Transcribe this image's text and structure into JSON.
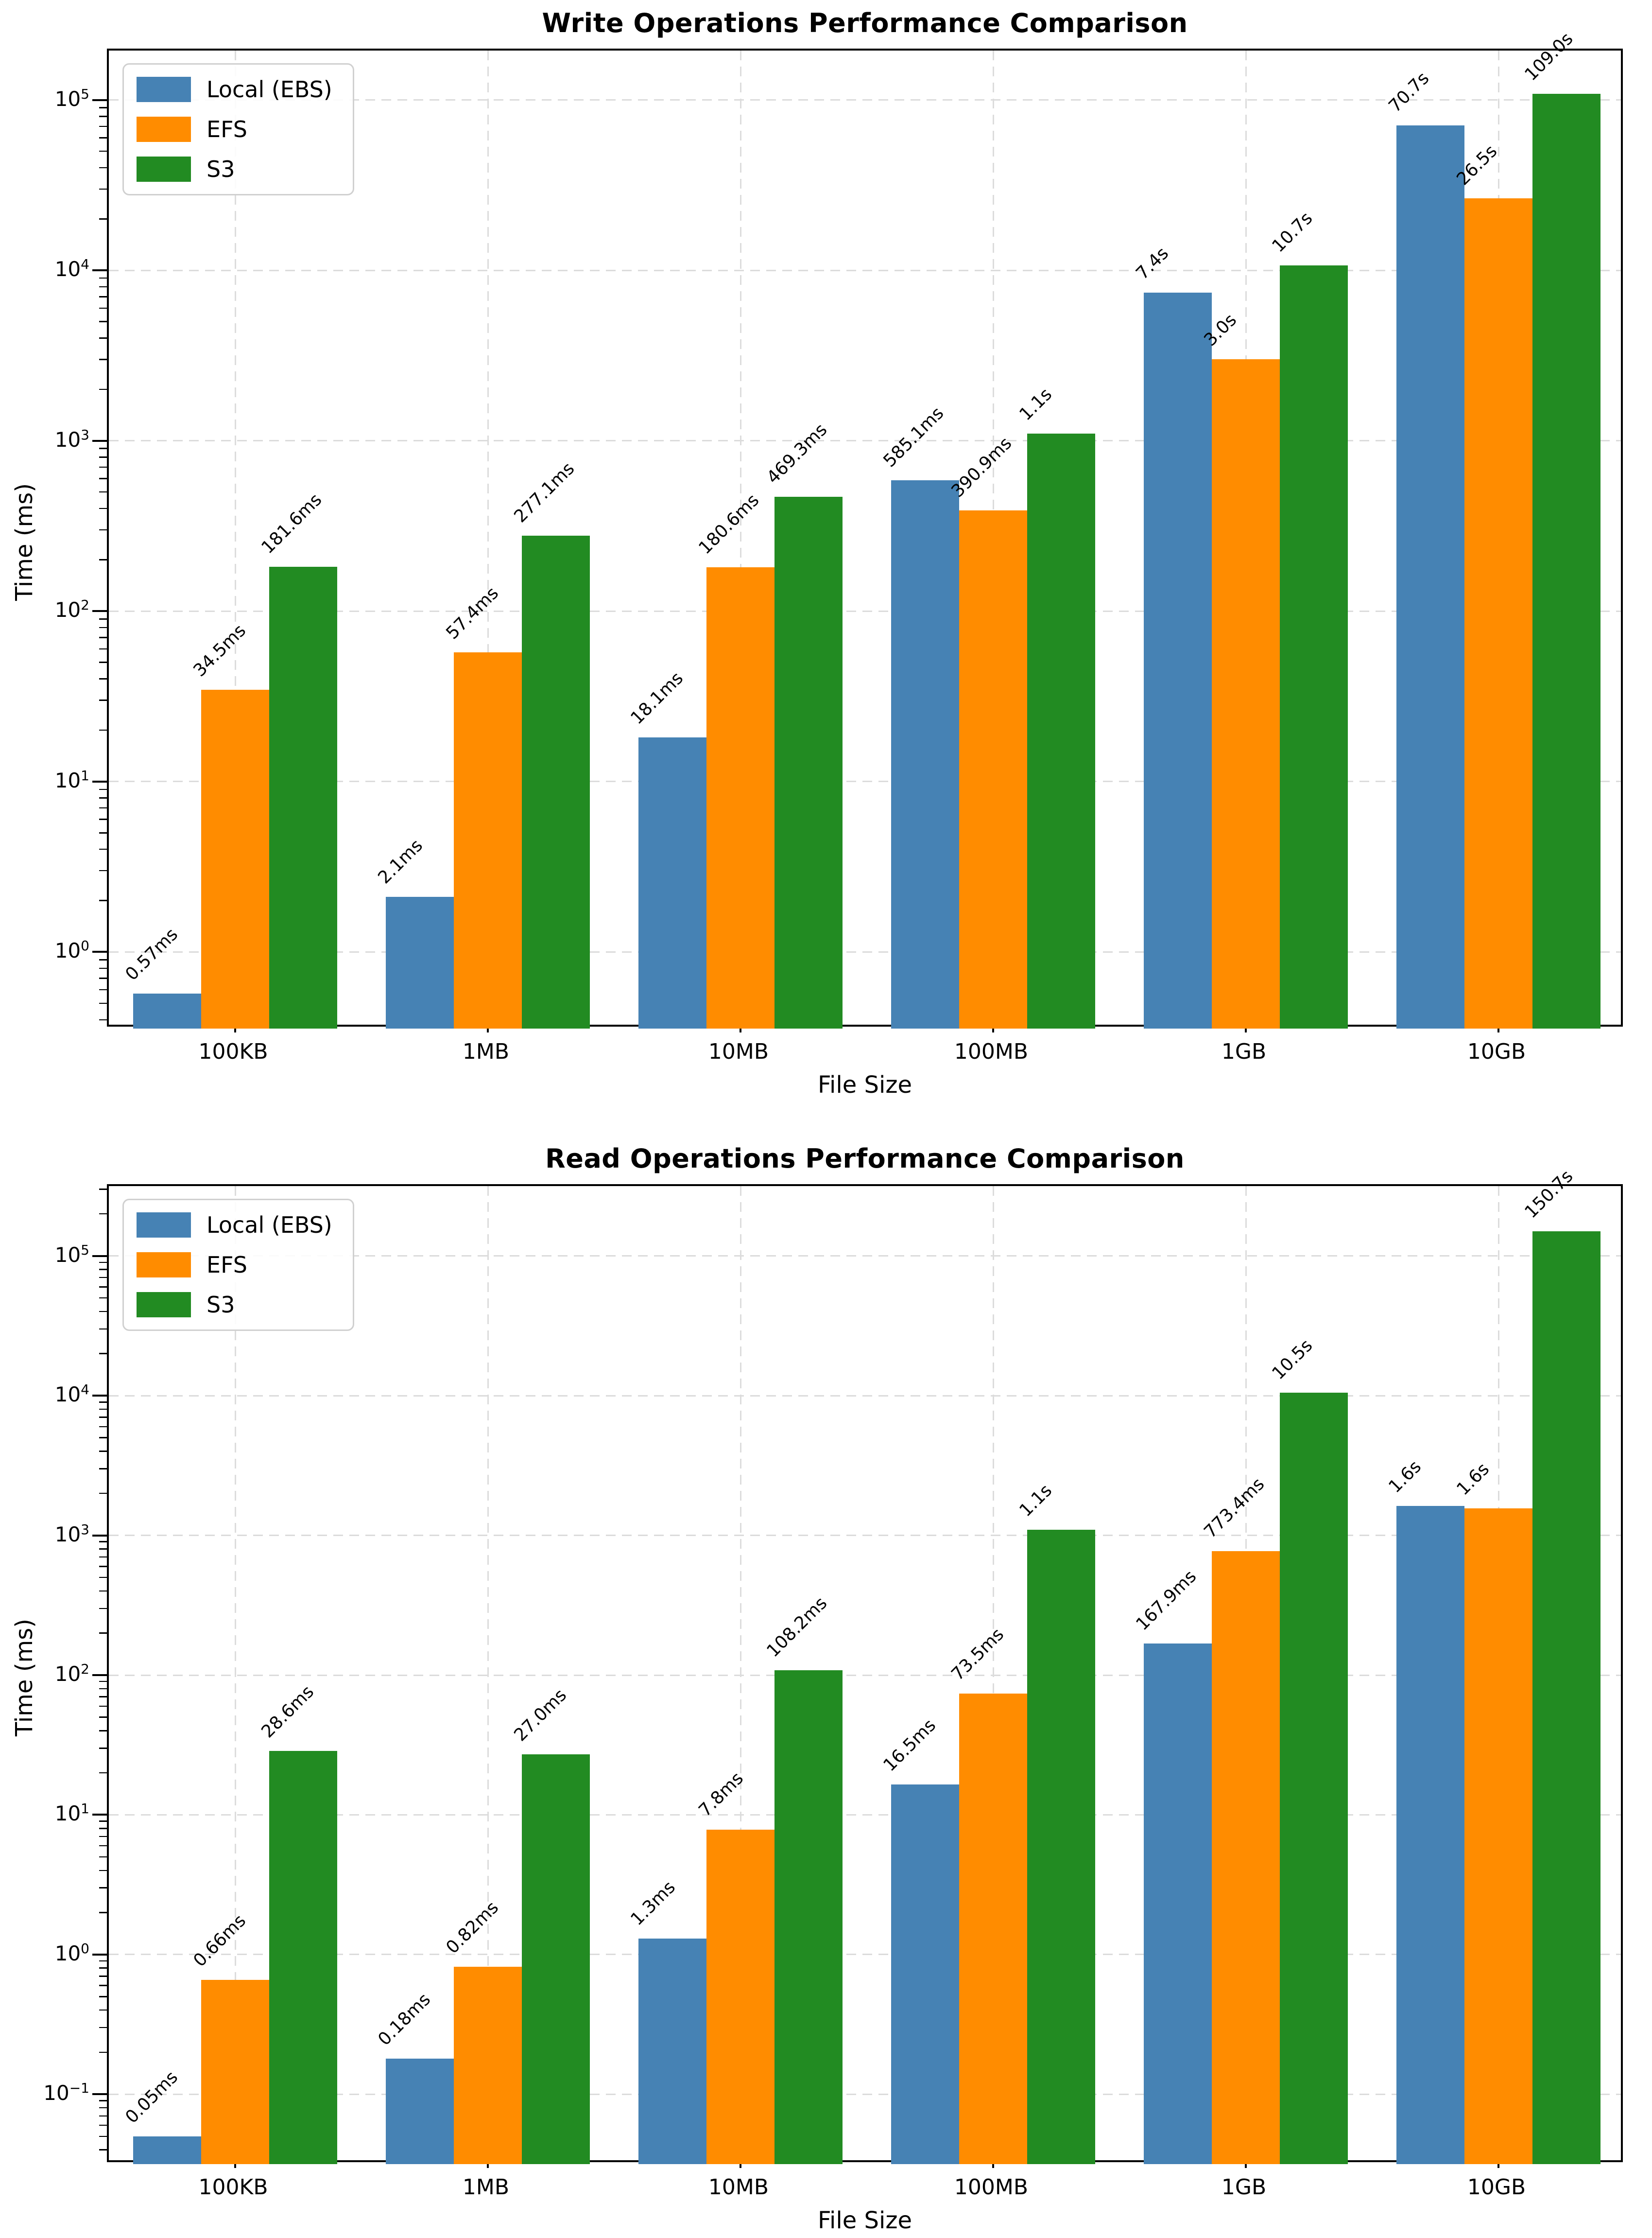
{
  "figure": {
    "background": "#ffffff",
    "grid_color": "#dcdcdc",
    "spine_color": "#000000"
  },
  "chart_data": [
    {
      "type": "bar",
      "title": "Write Operations Performance Comparison",
      "xlabel": "File Size",
      "ylabel": "Time (ms)",
      "yscale": "log",
      "grid": true,
      "legend_position": "upper left",
      "categories": [
        "100KB",
        "1MB",
        "10MB",
        "100MB",
        "1GB",
        "10GB"
      ],
      "ytick_exponents": [
        0,
        1,
        2,
        3,
        4,
        5
      ],
      "ylim_log10": [
        -0.45,
        5.29
      ],
      "series": [
        {
          "name": "Local (EBS)",
          "color": "#4682B4",
          "values_ms": [
            0.57,
            2.1,
            18.1,
            585.1,
            7400,
            70700
          ],
          "labels": [
            "0.57ms",
            "2.1ms",
            "18.1ms",
            "585.1ms",
            "7.4s",
            "70.7s"
          ]
        },
        {
          "name": "EFS",
          "color": "#FF8C00",
          "values_ms": [
            34.5,
            57.4,
            180.6,
            390.9,
            3000,
            26500
          ],
          "labels": [
            "34.5ms",
            "57.4ms",
            "180.6ms",
            "390.9ms",
            "3.0s",
            "26.5s"
          ]
        },
        {
          "name": "S3",
          "color": "#228B22",
          "values_ms": [
            181.6,
            277.1,
            469.3,
            1100,
            10700,
            109000
          ],
          "labels": [
            "181.6ms",
            "277.1ms",
            "469.3ms",
            "1.1s",
            "10.7s",
            "109.0s"
          ]
        }
      ]
    },
    {
      "type": "bar",
      "title": "Read Operations Performance Comparison",
      "xlabel": "File Size",
      "ylabel": "Time (ms)",
      "yscale": "log",
      "grid": true,
      "legend_position": "upper left",
      "categories": [
        "100KB",
        "1MB",
        "10MB",
        "100MB",
        "1GB",
        "10GB"
      ],
      "ytick_exponents": [
        -1,
        0,
        1,
        2,
        3,
        4,
        5
      ],
      "ylim_log10": [
        -1.5,
        5.5
      ],
      "series": [
        {
          "name": "Local (EBS)",
          "color": "#4682B4",
          "values_ms": [
            0.05,
            0.18,
            1.3,
            16.5,
            167.9,
            1620
          ],
          "labels": [
            "0.05ms",
            "0.18ms",
            "1.3ms",
            "16.5ms",
            "167.9ms",
            "1.6s"
          ]
        },
        {
          "name": "EFS",
          "color": "#FF8C00",
          "values_ms": [
            0.66,
            0.82,
            7.8,
            73.5,
            773.4,
            1560
          ],
          "labels": [
            "0.66ms",
            "0.82ms",
            "7.8ms",
            "73.5ms",
            "773.4ms",
            "1.6s"
          ]
        },
        {
          "name": "S3",
          "color": "#228B22",
          "values_ms": [
            28.6,
            27.0,
            108.2,
            1100,
            10500,
            150700
          ],
          "labels": [
            "28.6ms",
            "27.0ms",
            "108.2ms",
            "1.1s",
            "10.5s",
            "150.7s"
          ]
        }
      ]
    }
  ]
}
